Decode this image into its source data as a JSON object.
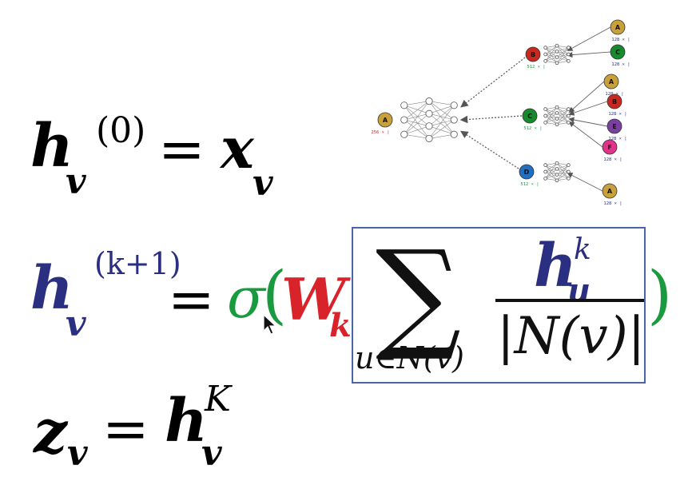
{
  "equations": {
    "eq1": {
      "lhs": "h",
      "lhs_sub": "v",
      "lhs_sup": "(0)",
      "eq": "=",
      "rhs": "x",
      "rhs_sub": "v"
    },
    "eq2": {
      "lhs": "h",
      "lhs_sub": "v",
      "lhs_sup": "(k+1)",
      "eq": "=",
      "sigma": "σ",
      "lparen": "(",
      "W": "W",
      "W_sub": "k",
      "rparen": ")",
      "sum": "∑",
      "sum_sub": "u∈N(v)",
      "num": "h",
      "num_sub": "u",
      "num_sup": "k",
      "den": "|N(v)|"
    },
    "eq3": {
      "lhs": "z",
      "lhs_sub": "v",
      "eq": "=",
      "rhs": "h",
      "rhs_sub": "v",
      "rhs_sup": "K"
    }
  },
  "graph": {
    "nodes": [
      {
        "id": "root",
        "label": "A",
        "color": "#c9a13b",
        "dim": "256 × |"
      },
      {
        "id": "b",
        "label": "B",
        "color": "#c8281e",
        "dim": "512 × |"
      },
      {
        "id": "c",
        "label": "C",
        "color": "#168a2c",
        "dim": "512 × |"
      },
      {
        "id": "d",
        "label": "D",
        "color": "#1f6fc2",
        "dim": "512 × |"
      },
      {
        "id": "bA",
        "label": "A",
        "color": "#c9a13b",
        "dim": "128 × |"
      },
      {
        "id": "bC",
        "label": "C",
        "color": "#168a2c",
        "dim": "128 × |"
      },
      {
        "id": "cA",
        "label": "A",
        "color": "#c9a13b",
        "dim": "128 × |"
      },
      {
        "id": "cB",
        "label": "B",
        "color": "#c8281e",
        "dim": "128 × |"
      },
      {
        "id": "cE",
        "label": "E",
        "color": "#7b3fa0",
        "dim": "128 × |"
      },
      {
        "id": "cF",
        "label": "F",
        "color": "#e0338a",
        "dim": "128 × |"
      },
      {
        "id": "dA",
        "label": "A",
        "color": "#c9a13b",
        "dim": "128 × |"
      }
    ]
  },
  "colors": {
    "blue": "#2a2f82",
    "green": "#1a9a3e",
    "red": "#d8232a",
    "box": "#4a63ad"
  }
}
